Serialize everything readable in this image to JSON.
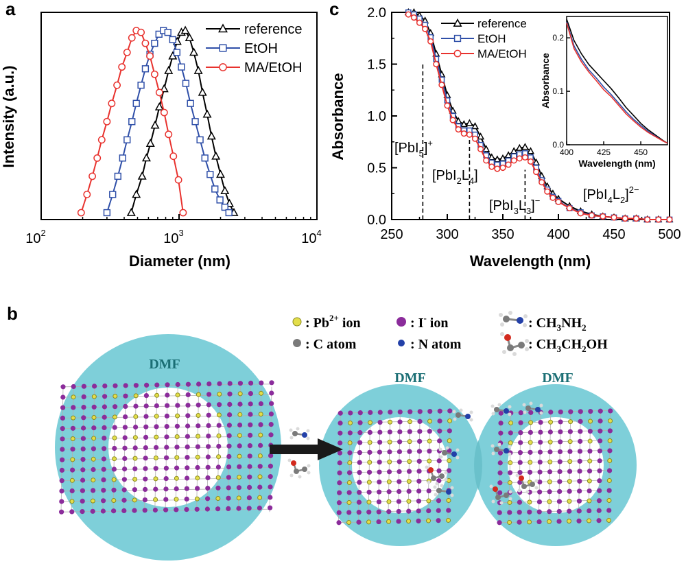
{
  "panels": {
    "a": "a",
    "c": "c",
    "b": "b"
  },
  "chart_data": [
    {
      "id": "panel-a",
      "type": "line",
      "xscale": "log",
      "xlabel": "Diameter (nm)",
      "ylabel": "Intensity (a.u.)",
      "xlim": [
        100,
        10000
      ],
      "ylim": [
        0,
        1.1
      ],
      "xticks": [
        {
          "value": 100,
          "base": "10",
          "exp": "2"
        },
        {
          "value": 1000,
          "base": "10",
          "exp": "3"
        },
        {
          "value": 10000,
          "base": "10",
          "exp": "4"
        }
      ],
      "legend": "top-right",
      "series": [
        {
          "name": "reference",
          "marker": "triangle",
          "color": "#000000",
          "x": [
            450,
            490,
            540,
            580,
            620,
            670,
            720,
            780,
            840,
            900,
            970,
            1040,
            1110,
            1190,
            1280,
            1380,
            1480,
            1600,
            1720,
            1850,
            2000,
            2150,
            2320,
            2500
          ],
          "y": [
            0.0,
            0.1,
            0.2,
            0.3,
            0.38,
            0.48,
            0.58,
            0.68,
            0.78,
            0.86,
            0.94,
            0.99,
            1.0,
            0.96,
            0.88,
            0.78,
            0.66,
            0.54,
            0.42,
            0.31,
            0.21,
            0.12,
            0.05,
            0.0
          ]
        },
        {
          "name": "EtOH",
          "marker": "square",
          "color": "#2F4FA8",
          "x": [
            300,
            330,
            360,
            390,
            420,
            455,
            490,
            530,
            570,
            615,
            665,
            715,
            770,
            830,
            900,
            965,
            1040,
            1120,
            1210,
            1310,
            1420,
            1540,
            1680,
            1820,
            1980,
            2150,
            2300
          ],
          "y": [
            0.0,
            0.1,
            0.2,
            0.3,
            0.4,
            0.5,
            0.6,
            0.7,
            0.79,
            0.87,
            0.93,
            0.98,
            1.0,
            0.99,
            0.95,
            0.88,
            0.8,
            0.71,
            0.6,
            0.5,
            0.4,
            0.3,
            0.21,
            0.13,
            0.07,
            0.03,
            0.0
          ]
        },
        {
          "name": "MA/EtOH",
          "marker": "circle",
          "color": "#E8322E",
          "x": [
            195,
            215,
            235,
            255,
            275,
            300,
            325,
            355,
            385,
            420,
            455,
            490,
            530,
            570,
            615,
            665,
            720,
            780,
            840,
            910,
            990,
            1070
          ],
          "y": [
            0.0,
            0.1,
            0.2,
            0.3,
            0.4,
            0.5,
            0.6,
            0.7,
            0.8,
            0.88,
            0.96,
            1.0,
            0.99,
            0.93,
            0.86,
            0.76,
            0.66,
            0.55,
            0.43,
            0.31,
            0.18,
            0.0
          ]
        }
      ]
    },
    {
      "id": "panel-c",
      "type": "line",
      "xlabel": "Wavelength (nm)",
      "ylabel": "Absorbance",
      "xlim": [
        250,
        500
      ],
      "ylim": [
        0,
        2.0
      ],
      "xticks": [
        "250",
        "300",
        "350",
        "400",
        "450",
        "500"
      ],
      "yticks": [
        "0.0",
        "0.5",
        "1.0",
        "1.5",
        "2.0"
      ],
      "legend": "top-right",
      "annotations": [
        {
          "x": 278,
          "label_main": "[PbI",
          "sub1": "5",
          "mid": "]",
          "sup": "+"
        },
        {
          "x": 320,
          "label_main": "[PbI",
          "sub1": "2",
          "mid": "L",
          "sub2": "4",
          "end": "]"
        },
        {
          "x": 370,
          "label_main": "[PbI",
          "sub1": "3",
          "mid": "L",
          "sub2": "3",
          "end": "]",
          "sup": "−"
        },
        {
          "x": 430,
          "label_main": "[PbI",
          "sub1": "4",
          "mid": "L",
          "sub2": "2",
          "end": "]",
          "sup": "2−"
        }
      ],
      "series": [
        {
          "name": "reference",
          "marker": "triangle",
          "color": "#000000",
          "x": [
            265,
            270,
            275,
            280,
            285,
            290,
            295,
            300,
            305,
            310,
            315,
            320,
            325,
            330,
            335,
            340,
            345,
            350,
            355,
            360,
            365,
            370,
            375,
            380,
            385,
            390,
            395,
            400,
            410,
            420,
            430,
            440,
            450,
            460,
            470,
            480,
            490,
            500
          ],
          "y": [
            2.0,
            2.0,
            1.97,
            1.92,
            1.8,
            1.6,
            1.4,
            1.2,
            1.05,
            0.95,
            0.92,
            0.93,
            0.9,
            0.8,
            0.68,
            0.6,
            0.58,
            0.59,
            0.62,
            0.66,
            0.69,
            0.7,
            0.66,
            0.55,
            0.42,
            0.32,
            0.25,
            0.2,
            0.13,
            0.08,
            0.05,
            0.03,
            0.02,
            0.01,
            0.01,
            0.0,
            0.0,
            0.0
          ]
        },
        {
          "name": "EtOH",
          "marker": "square",
          "color": "#2F4FA8",
          "x": [
            265,
            270,
            275,
            280,
            285,
            290,
            295,
            300,
            305,
            310,
            315,
            320,
            325,
            330,
            335,
            340,
            345,
            350,
            355,
            360,
            365,
            370,
            375,
            380,
            385,
            390,
            395,
            400,
            410,
            420,
            430,
            440,
            450,
            460,
            470,
            480,
            490,
            500
          ],
          "y": [
            2.0,
            1.98,
            1.94,
            1.88,
            1.76,
            1.55,
            1.35,
            1.15,
            1.0,
            0.9,
            0.86,
            0.86,
            0.82,
            0.72,
            0.62,
            0.55,
            0.53,
            0.54,
            0.57,
            0.61,
            0.63,
            0.64,
            0.6,
            0.5,
            0.38,
            0.29,
            0.22,
            0.18,
            0.11,
            0.07,
            0.04,
            0.03,
            0.02,
            0.01,
            0.01,
            0.0,
            0.0,
            0.0
          ]
        },
        {
          "name": "MA/EtOH",
          "marker": "circle",
          "color": "#E8322E",
          "x": [
            265,
            270,
            275,
            280,
            285,
            290,
            295,
            300,
            305,
            310,
            315,
            320,
            325,
            330,
            335,
            340,
            345,
            350,
            355,
            360,
            365,
            370,
            375,
            380,
            385,
            390,
            395,
            400,
            410,
            420,
            430,
            440,
            450,
            460,
            470,
            480,
            490,
            500
          ],
          "y": [
            1.98,
            1.95,
            1.9,
            1.84,
            1.72,
            1.5,
            1.3,
            1.1,
            0.96,
            0.87,
            0.83,
            0.82,
            0.78,
            0.68,
            0.57,
            0.51,
            0.49,
            0.5,
            0.53,
            0.57,
            0.59,
            0.6,
            0.56,
            0.46,
            0.36,
            0.27,
            0.21,
            0.17,
            0.11,
            0.06,
            0.04,
            0.03,
            0.02,
            0.01,
            0.01,
            0.0,
            0.0,
            0.0
          ]
        }
      ]
    },
    {
      "id": "panel-c-inset",
      "type": "line",
      "xlabel": "Wavelength (nm)",
      "ylabel": "Absorbance",
      "xlim": [
        400,
        468
      ],
      "ylim": [
        0,
        0.24
      ],
      "xticks": [
        "400",
        "425",
        "450"
      ],
      "yticks": [
        "0.0",
        "0.1",
        "0.2"
      ],
      "series": [
        {
          "name": "reference",
          "color": "#000000",
          "x": [
            400,
            405,
            410,
            415,
            420,
            425,
            430,
            435,
            440,
            445,
            450,
            455,
            460,
            465,
            468
          ],
          "y": [
            0.235,
            0.195,
            0.17,
            0.15,
            0.135,
            0.12,
            0.105,
            0.088,
            0.07,
            0.055,
            0.04,
            0.028,
            0.018,
            0.008,
            0.003
          ]
        },
        {
          "name": "EtOH",
          "color": "#2F4FA8",
          "x": [
            400,
            405,
            410,
            415,
            420,
            425,
            430,
            435,
            440,
            445,
            450,
            455,
            460,
            465,
            468
          ],
          "y": [
            0.23,
            0.185,
            0.16,
            0.14,
            0.125,
            0.108,
            0.094,
            0.078,
            0.062,
            0.048,
            0.036,
            0.025,
            0.016,
            0.007,
            0.003
          ]
        },
        {
          "name": "MA/EtOH",
          "color": "#E8322E",
          "x": [
            400,
            405,
            410,
            415,
            420,
            425,
            430,
            435,
            440,
            445,
            450,
            455,
            460,
            465,
            468
          ],
          "y": [
            0.228,
            0.18,
            0.155,
            0.136,
            0.12,
            0.103,
            0.09,
            0.074,
            0.058,
            0.045,
            0.033,
            0.023,
            0.015,
            0.007,
            0.003
          ]
        }
      ]
    }
  ],
  "diagram": {
    "legend": {
      "pb": {
        "text": ": Pb",
        "sup": "2+",
        "tail": " ion"
      },
      "i": {
        "text": ": I",
        "sup": "-",
        "tail": " ion"
      },
      "ma": {
        "pre": ": CH",
        "sub1": "3",
        "mid": "NH",
        "sub2": "2"
      },
      "c": {
        "text": ": C atom"
      },
      "n": {
        "text": ": N atom"
      },
      "etoh": {
        "pre": ": CH",
        "sub1": "3",
        "mid": "CH",
        "sub2": "2",
        "end": "OH"
      }
    },
    "dmf_label": "DMF",
    "colors": {
      "dmf": "#7ECFD9",
      "dmf_text": "#1A6E74",
      "iodide": "#8B2C9B",
      "lead": "#E3DE4A",
      "carbon": "#7A7A7A",
      "nitrogen": "#2340A8",
      "oxygen": "#D32A1E",
      "hydrogen": "#DADADA",
      "arrow": "#000000"
    }
  }
}
